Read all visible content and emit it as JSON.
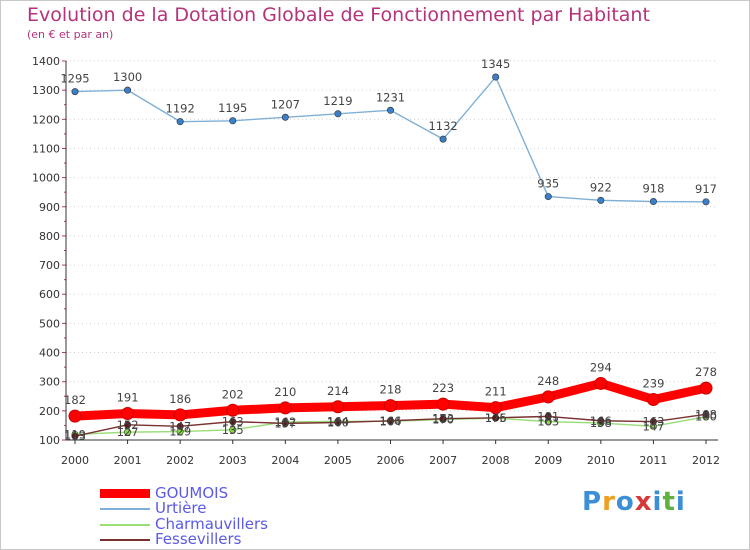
{
  "chart_data": {
    "type": "line",
    "title": "Evolution de la Dotation Globale de Fonctionnement par Habitant",
    "subtitle": "(en € et par an)",
    "xlabel": "",
    "ylabel": "",
    "ylim": [
      100,
      1400
    ],
    "yticks": [
      100,
      200,
      300,
      400,
      500,
      600,
      700,
      800,
      900,
      1000,
      1100,
      1200,
      1300,
      1400
    ],
    "categories": [
      "2000",
      "2001",
      "2002",
      "2003",
      "2004",
      "2005",
      "2006",
      "2007",
      "2008",
      "2009",
      "2010",
      "2011",
      "2012"
    ],
    "series": [
      {
        "name": "GOUMOIS",
        "color": "#ff0000",
        "values": [
          182,
          191,
          186,
          202,
          210,
          214,
          218,
          223,
          211,
          248,
          294,
          239,
          278
        ],
        "labels": [
          "182",
          "191",
          "186",
          "202",
          "210",
          "214",
          "218",
          "223",
          "211",
          "248",
          "294",
          "239",
          "278"
        ]
      },
      {
        "name": "Urtière",
        "color": "#7fb0d8",
        "values": [
          1295,
          1300,
          1192,
          1195,
          1207,
          1219,
          1231,
          1132,
          1345,
          935,
          922,
          918,
          917
        ],
        "labels": [
          "1295",
          "1300",
          "1192",
          "1195",
          "1207",
          "1219",
          "1231",
          "1132",
          "1345",
          "935",
          "922",
          "918",
          "917"
        ]
      },
      {
        "name": "Charmauvillers",
        "color": "#99dd77",
        "values": [
          119,
          127,
          129,
          135,
          162,
          164,
          164,
          170,
          175,
          163,
          158,
          147,
          180
        ],
        "labels": [
          "119",
          "127",
          "129",
          "135",
          "162",
          "164",
          "164",
          "170",
          "175",
          "163",
          "158",
          "147",
          "180"
        ]
      },
      {
        "name": "Fessevillers",
        "color": "#7a3030",
        "values": [
          113,
          152,
          147,
          163,
          157,
          160,
          166,
          173,
          176,
          181,
          166,
          163,
          188
        ],
        "labels": [
          "113",
          "152",
          "147",
          "163",
          "157",
          "160",
          "166",
          "173",
          "176",
          "181",
          "166",
          "163",
          "188"
        ]
      }
    ],
    "legend": "bottom-left"
  },
  "logo": {
    "text": "Proxiti",
    "letters": [
      "P",
      "r",
      "o",
      "x",
      "i",
      "t",
      "i"
    ],
    "colors": [
      "#3a8fd6",
      "#f0a020",
      "#3a8fd6",
      "#d83838",
      "#3a8fd6",
      "#60b040",
      "#3a8fd6"
    ]
  }
}
